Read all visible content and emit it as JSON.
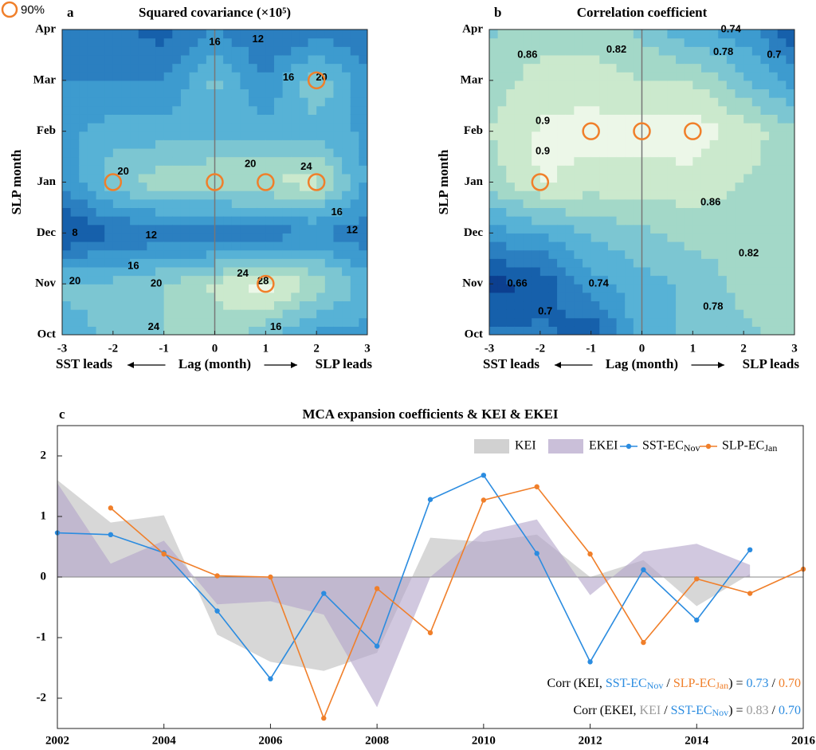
{
  "chart_data": [
    {
      "type": "contour",
      "panel": "a",
      "title": "Squared covariance (×10⁵)",
      "ylabel": "SLP  month",
      "xlabel": {
        "left": "SST leads",
        "center": "Lag (month)",
        "right": "SLP leads"
      },
      "x": [
        -3,
        -2,
        -1,
        0,
        1,
        2,
        3
      ],
      "xlim": [
        -3,
        3
      ],
      "xticks": [
        -3,
        -2,
        -1,
        0,
        1,
        2,
        3
      ],
      "ylim": [
        0,
        6
      ],
      "yticks": [
        {
          "value": 0,
          "label": "Oct"
        },
        {
          "value": 1,
          "label": "Nov"
        },
        {
          "value": 2,
          "label": "Dec"
        },
        {
          "value": 3,
          "label": "Jan"
        },
        {
          "value": 4,
          "label": "Feb"
        },
        {
          "value": 5,
          "label": "Mar"
        },
        {
          "value": 6,
          "label": "Apr"
        }
      ],
      "z": [
        [
          18,
          20,
          22,
          24,
          20,
          16,
          16
        ],
        [
          20,
          20,
          22,
          25,
          29,
          24,
          18
        ],
        [
          8,
          11,
          12,
          11,
          12,
          14,
          12
        ],
        [
          14,
          21,
          24,
          25,
          25,
          26,
          16
        ],
        [
          16,
          18,
          18,
          18,
          18,
          18,
          16
        ],
        [
          14,
          14,
          14,
          20,
          14,
          22,
          14
        ],
        [
          12,
          12,
          10,
          14,
          11,
          12,
          12
        ]
      ],
      "zlim": [
        6,
        30
      ],
      "colormap": [
        "#0c3f8f",
        "#1660ab",
        "#2b7fc0",
        "#3d9bcf",
        "#57b2d6",
        "#7cc6d2",
        "#a3d8c8",
        "#cbe9cd",
        "#ecf7e8"
      ],
      "legend": "90%",
      "marker_color": "#f07f2a",
      "markers": [
        {
          "x": -2,
          "y": 3
        },
        {
          "x": 0,
          "y": 3
        },
        {
          "x": 1,
          "y": 3
        },
        {
          "x": 2,
          "y": 3
        },
        {
          "x": 1,
          "y": 1
        },
        {
          "x": 2,
          "y": 5
        }
      ],
      "contour_labels": [
        {
          "level": 16,
          "x": 0,
          "y": 5.75
        },
        {
          "level": 12,
          "x": 0.85,
          "y": 5.8
        },
        {
          "level": 16,
          "x": 1.45,
          "y": 5.05
        },
        {
          "level": 20,
          "x": 2.1,
          "y": 5.05
        },
        {
          "level": 20,
          "x": -1.8,
          "y": 3.2
        },
        {
          "level": 20,
          "x": 0.7,
          "y": 3.35
        },
        {
          "level": 24,
          "x": 1.8,
          "y": 3.3
        },
        {
          "level": 16,
          "x": 2.4,
          "y": 2.4
        },
        {
          "level": 12,
          "x": 2.7,
          "y": 2.05
        },
        {
          "level": 8,
          "x": -2.75,
          "y": 2.0
        },
        {
          "level": 12,
          "x": -1.25,
          "y": 1.95
        },
        {
          "level": 16,
          "x": -1.6,
          "y": 1.35
        },
        {
          "level": 20,
          "x": -2.75,
          "y": 1.05
        },
        {
          "level": 20,
          "x": -1.15,
          "y": 1.0
        },
        {
          "level": 24,
          "x": 0.55,
          "y": 1.2
        },
        {
          "level": 28,
          "x": 0.95,
          "y": 1.05
        },
        {
          "level": 24,
          "x": -1.2,
          "y": 0.15
        },
        {
          "level": 16,
          "x": 1.2,
          "y": 0.15
        }
      ]
    },
    {
      "type": "contour",
      "panel": "b",
      "title": "Correlation coefficient",
      "ylabel": "SLP  month",
      "xlabel": {
        "left": "SST leads",
        "center": "Lag (month)",
        "right": "SLP leads"
      },
      "x": [
        -3,
        -2,
        -1,
        0,
        1,
        2,
        3
      ],
      "xlim": [
        -3,
        3
      ],
      "xticks": [
        -3,
        -2,
        -1,
        0,
        1,
        2,
        3
      ],
      "ylim": [
        0,
        6
      ],
      "yticks": [
        {
          "value": 0,
          "label": "Oct"
        },
        {
          "value": 1,
          "label": "Nov"
        },
        {
          "value": 2,
          "label": "Dec"
        },
        {
          "value": 3,
          "label": "Jan"
        },
        {
          "value": 4,
          "label": "Feb"
        },
        {
          "value": 5,
          "label": "Mar"
        },
        {
          "value": 6,
          "label": "Apr"
        }
      ],
      "z": [
        [
          0.7,
          0.7,
          0.66,
          0.78,
          0.8,
          0.82,
          0.84
        ],
        [
          0.64,
          0.66,
          0.74,
          0.78,
          0.8,
          0.84,
          0.86
        ],
        [
          0.74,
          0.76,
          0.8,
          0.82,
          0.84,
          0.84,
          0.86
        ],
        [
          0.84,
          0.9,
          0.88,
          0.88,
          0.88,
          0.86,
          0.84
        ],
        [
          0.86,
          0.9,
          0.91,
          0.91,
          0.92,
          0.88,
          0.84
        ],
        [
          0.84,
          0.88,
          0.88,
          0.86,
          0.86,
          0.8,
          0.74
        ],
        [
          0.82,
          0.84,
          0.84,
          0.82,
          0.76,
          0.74,
          0.66
        ]
      ],
      "zlim": [
        0.62,
        0.93
      ],
      "colormap": [
        "#0c3f8f",
        "#1660ab",
        "#2b7fc0",
        "#3d9bcf",
        "#57b2d6",
        "#7cc6d2",
        "#a3d8c8",
        "#cbe9cd",
        "#ecf7e8"
      ],
      "marker_color": "#f07f2a",
      "markers": [
        {
          "x": -2,
          "y": 3
        },
        {
          "x": -1,
          "y": 4
        },
        {
          "x": 0,
          "y": 4
        },
        {
          "x": 1,
          "y": 4
        }
      ],
      "contour_labels": [
        {
          "level": 0.86,
          "x": -2.25,
          "y": 5.5
        },
        {
          "level": 0.82,
          "x": -0.5,
          "y": 5.6
        },
        {
          "level": 0.74,
          "x": 1.75,
          "y": 6.0
        },
        {
          "level": 0.78,
          "x": 1.6,
          "y": 5.55
        },
        {
          "level": 0.7,
          "x": 2.6,
          "y": 5.5
        },
        {
          "level": 0.9,
          "x": -1.95,
          "y": 4.2
        },
        {
          "level": 0.9,
          "x": -1.95,
          "y": 3.6
        },
        {
          "level": 0.86,
          "x": 1.35,
          "y": 2.6
        },
        {
          "level": 0.82,
          "x": 2.1,
          "y": 1.6
        },
        {
          "level": 0.66,
          "x": -2.45,
          "y": 1.0
        },
        {
          "level": 0.74,
          "x": -0.85,
          "y": 1.0
        },
        {
          "level": 0.7,
          "x": -1.9,
          "y": 0.45
        },
        {
          "level": 0.78,
          "x": 1.4,
          "y": 0.55
        }
      ]
    },
    {
      "type": "line",
      "panel": "c",
      "title": "MCA expansion coefficients & KEI & EKEI",
      "xlim": [
        2002,
        2016
      ],
      "xticks": [
        2002,
        2004,
        2006,
        2008,
        2010,
        2012,
        2014,
        2016
      ],
      "ylim": [
        -2.5,
        2.5
      ],
      "yticks": [
        -2,
        -1,
        0,
        1,
        2
      ],
      "series": [
        {
          "name": "KEI",
          "kind": "area",
          "color": "#bdbdbd",
          "x": [
            2002,
            2003,
            2004,
            2005,
            2006,
            2007,
            2008,
            2009,
            2010,
            2011,
            2012,
            2013,
            2014,
            2015
          ],
          "values": [
            1.6,
            0.9,
            1.02,
            -0.95,
            -1.4,
            -1.55,
            -1.25,
            0.65,
            0.58,
            0.7,
            0.0,
            0.28,
            -0.48,
            0.05
          ]
        },
        {
          "name": "EKEI",
          "kind": "area",
          "color": "#b3a4c9",
          "x": [
            2002,
            2003,
            2004,
            2005,
            2006,
            2007,
            2008,
            2009,
            2010,
            2011,
            2012,
            2013,
            2014,
            2015
          ],
          "values": [
            1.55,
            0.22,
            0.6,
            -0.45,
            -0.4,
            -0.62,
            -2.15,
            0.0,
            0.75,
            0.95,
            -0.3,
            0.42,
            0.55,
            0.2
          ]
        },
        {
          "name": "SST-EC",
          "subscript": "Nov",
          "kind": "line",
          "color": "#2b8ce0",
          "x": [
            2002,
            2003,
            2004,
            2005,
            2006,
            2007,
            2008,
            2009,
            2010,
            2011,
            2012,
            2013,
            2014,
            2015
          ],
          "values": [
            0.73,
            0.7,
            0.4,
            -0.56,
            -1.68,
            -0.27,
            -1.14,
            1.28,
            1.68,
            0.39,
            -1.4,
            0.12,
            -0.71,
            0.45
          ]
        },
        {
          "name": "SLP-EC",
          "subscript": "Jan",
          "kind": "line",
          "color": "#f07f2a",
          "x": [
            2003,
            2004,
            2005,
            2006,
            2007,
            2008,
            2009,
            2010,
            2011,
            2012,
            2013,
            2014,
            2015,
            2016
          ],
          "values": [
            1.14,
            0.38,
            0.02,
            0.0,
            -2.33,
            -0.19,
            -0.92,
            1.27,
            1.49,
            0.38,
            -1.08,
            -0.03,
            -0.27,
            0.13
          ]
        }
      ],
      "annotations": [
        [
          {
            "text": "Corr (KEI, ",
            "color": "#000000"
          },
          {
            "text": "SST-EC",
            "color": "#2b8ce0"
          },
          {
            "text": "Nov",
            "color": "#2b8ce0",
            "sub": true
          },
          {
            "text": " / ",
            "color": "#000000"
          },
          {
            "text": "SLP-EC",
            "color": "#f07f2a"
          },
          {
            "text": "Jan",
            "color": "#f07f2a",
            "sub": true
          },
          {
            "text": ") = ",
            "color": "#000000"
          },
          {
            "text": "0.73",
            "color": "#2b8ce0"
          },
          {
            "text": " / ",
            "color": "#000000"
          },
          {
            "text": "0.70",
            "color": "#f07f2a"
          }
        ],
        [
          {
            "text": "Corr (EKEI, ",
            "color": "#000000"
          },
          {
            "text": "KEI",
            "color": "#999999"
          },
          {
            "text": " / ",
            "color": "#000000"
          },
          {
            "text": "SST-EC",
            "color": "#2b8ce0"
          },
          {
            "text": "Nov",
            "color": "#2b8ce0",
            "sub": true
          },
          {
            "text": ") = ",
            "color": "#000000"
          },
          {
            "text": "0.83",
            "color": "#999999"
          },
          {
            "text": " / ",
            "color": "#000000"
          },
          {
            "text": "0.70",
            "color": "#2b8ce0"
          }
        ]
      ]
    }
  ]
}
